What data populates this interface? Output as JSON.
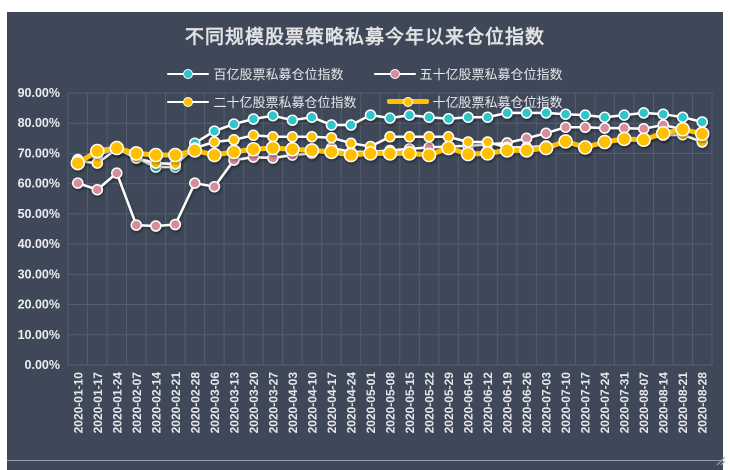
{
  "window": {
    "panel_color": "#3E4858",
    "grid_color": "#535E70",
    "outer_margin_color": "#FFFFFF"
  },
  "title": "不同规模股票策略私募今年以来仓位指数",
  "legend": {
    "position": "top",
    "rows": [
      [
        0,
        1
      ],
      [
        2,
        3
      ]
    ],
    "items": [
      {
        "label": "百亿股票私募仓位指数",
        "marker_color": "#2FC5CB",
        "line_color": "#FFFFFF",
        "thick": false
      },
      {
        "label": "五十亿股票私募仓位指数",
        "marker_color": "#D98C9B",
        "line_color": "#FFFFFF",
        "thick": false
      },
      {
        "label": "二十亿股票私募仓位指数",
        "marker_color": "#FFC000",
        "line_color": "#FFFFFF",
        "thick": false
      },
      {
        "label": "十亿股票私募仓位指数",
        "marker_color": "#FFC000",
        "line_color": "#FFC000",
        "thick": true
      }
    ]
  },
  "chart_data": {
    "type": "line",
    "title": "不同规模股票策略私募今年以来仓位指数",
    "xlabel": "",
    "ylabel": "",
    "ylim": [
      0,
      90
    ],
    "ytick_step": 10,
    "ytick_labels": [
      "0.00%",
      "10.00%",
      "20.00%",
      "30.00%",
      "40.00%",
      "50.00%",
      "60.00%",
      "70.00%",
      "80.00%",
      "90.00%"
    ],
    "grid": true,
    "legend_position": "top",
    "categories": [
      "2020-01-10",
      "2020-01-17",
      "2020-01-24",
      "2020-02-07",
      "2020-02-14",
      "2020-02-21",
      "2020-02-28",
      "2020-03-06",
      "2020-03-13",
      "2020-03-20",
      "2020-03-27",
      "2020-04-03",
      "2020-04-10",
      "2020-04-17",
      "2020-04-24",
      "2020-05-01",
      "2020-05-08",
      "2020-05-15",
      "2020-05-22",
      "2020-05-29",
      "2020-06-05",
      "2020-06-12",
      "2020-06-19",
      "2020-06-26",
      "2020-07-03",
      "2020-07-10",
      "2020-07-17",
      "2020-07-24",
      "2020-07-31",
      "2020-08-07",
      "2020-08-14",
      "2020-08-21",
      "2020-08-28"
    ],
    "series": [
      {
        "name": "百亿股票私募仓位指数",
        "marker_color": "#2FC5CB",
        "line_color": "#FFFFFF",
        "line_width": 2.5,
        "marker_radius": 5,
        "values": [
          68.0,
          69.5,
          71.5,
          68.5,
          65.5,
          65.5,
          73.4,
          77.4,
          79.7,
          81.4,
          82.5,
          81.0,
          82.0,
          79.4,
          79.4,
          82.7,
          81.7,
          82.7,
          82.0,
          81.5,
          82.0,
          82.0,
          83.4,
          83.4,
          83.4,
          83.0,
          82.7,
          82.0,
          82.7,
          83.4,
          83.0,
          82.0,
          80.4
        ]
      },
      {
        "name": "五十亿股票私募仓位指数",
        "marker_color": "#D98C9B",
        "line_color": "#FFFFFF",
        "line_width": 2.5,
        "marker_radius": 5,
        "values": [
          60.2,
          58.0,
          63.5,
          46.3,
          46.0,
          46.5,
          60.2,
          59.0,
          67.8,
          68.8,
          68.5,
          69.5,
          70.0,
          71.8,
          70.5,
          70.5,
          71.0,
          71.5,
          72.0,
          72.3,
          72.5,
          73.0,
          73.5,
          75.0,
          76.7,
          78.7,
          78.7,
          78.4,
          78.4,
          78.2,
          79.4,
          78.0,
          76.5
        ]
      },
      {
        "name": "二十亿股票私募仓位指数",
        "marker_color": "#FFC000",
        "line_color": "#FFFFFF",
        "line_width": 2.5,
        "marker_radius": 5,
        "values": [
          67.5,
          66.8,
          71.5,
          68.5,
          66.8,
          66.5,
          71.8,
          73.8,
          74.5,
          76.0,
          75.5,
          75.5,
          75.5,
          75.2,
          73.4,
          72.3,
          75.5,
          75.5,
          75.5,
          75.5,
          73.8,
          73.8,
          72.0,
          72.0,
          72.5,
          73.8,
          71.8,
          73.6,
          74.8,
          74.5,
          76.0,
          76.2,
          73.8
        ]
      },
      {
        "name": "十亿股票私募仓位指数",
        "marker_color": "#FFC000",
        "line_color": "#FFC000",
        "line_width": 5,
        "marker_radius": 6.5,
        "values": [
          66.8,
          70.8,
          71.8,
          70.0,
          69.5,
          69.5,
          71.0,
          69.5,
          70.5,
          71.4,
          71.8,
          71.4,
          71.0,
          70.5,
          69.5,
          70.0,
          70.0,
          70.0,
          69.5,
          71.8,
          69.8,
          70.0,
          71.0,
          71.0,
          71.8,
          74.0,
          72.0,
          73.8,
          74.8,
          74.5,
          76.7,
          78.0,
          76.5
        ]
      }
    ]
  }
}
